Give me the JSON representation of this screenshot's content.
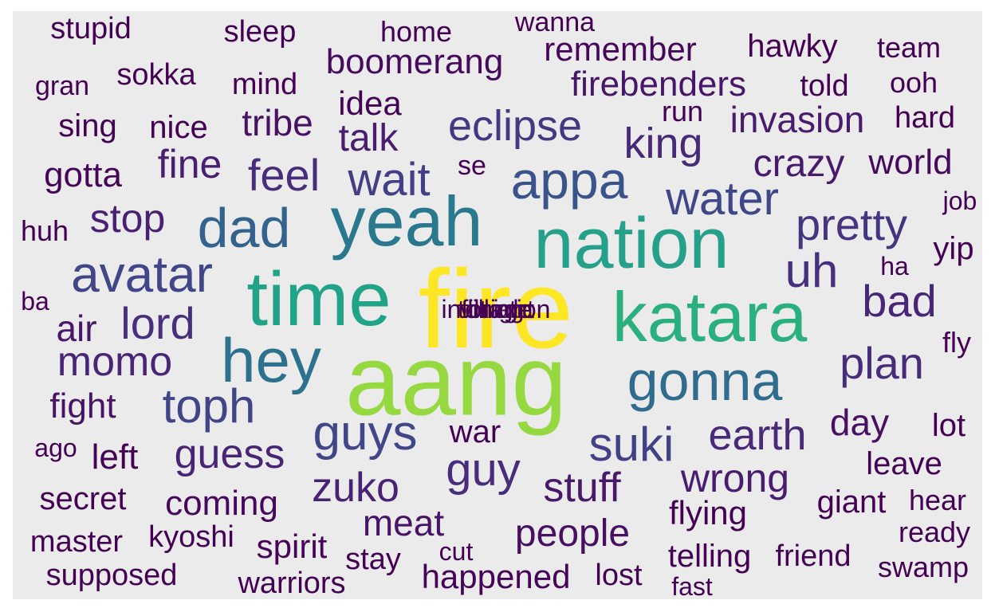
{
  "word_cloud": {
    "words": [
      {
        "text": "fire",
        "color": "#fde725"
      },
      {
        "text": "aang",
        "color": "#95d840"
      },
      {
        "text": "katara",
        "color": "#2ab07f"
      },
      {
        "text": "nation",
        "color": "#25a08a"
      },
      {
        "text": "time",
        "color": "#20a387"
      },
      {
        "text": "yeah",
        "color": "#2a788e"
      },
      {
        "text": "hey",
        "color": "#2c728e"
      },
      {
        "text": "gonna",
        "color": "#2f6c8e"
      },
      {
        "text": "dad",
        "color": "#33638d"
      },
      {
        "text": "appa",
        "color": "#3a538b"
      },
      {
        "text": "avatar",
        "color": "#404688"
      },
      {
        "text": "guys",
        "color": "#404688"
      },
      {
        "text": "water",
        "color": "#3f4788"
      },
      {
        "text": "toph",
        "color": "#414487"
      },
      {
        "text": "suki",
        "color": "#424186"
      },
      {
        "text": "wait",
        "color": "#433e85"
      },
      {
        "text": "eclipse",
        "color": "#453781"
      },
      {
        "text": "pretty",
        "color": "#463480"
      },
      {
        "text": "uh",
        "color": "#46307e"
      },
      {
        "text": "lord",
        "color": "#472f7d"
      },
      {
        "text": "feel",
        "color": "#472d7b"
      },
      {
        "text": "guy",
        "color": "#472d7b"
      },
      {
        "text": "plan",
        "color": "#472c7a"
      },
      {
        "text": "earth",
        "color": "#482a79"
      },
      {
        "text": "king",
        "color": "#482878"
      },
      {
        "text": "bad",
        "color": "#482677"
      },
      {
        "text": "momo",
        "color": "#482576"
      },
      {
        "text": "guess",
        "color": "#482475"
      },
      {
        "text": "zuko",
        "color": "#482374"
      },
      {
        "text": "stop",
        "color": "#482173"
      },
      {
        "text": "fine",
        "color": "#481f70"
      },
      {
        "text": "wrong",
        "color": "#481d6f"
      },
      {
        "text": "talk",
        "color": "#481c6e"
      },
      {
        "text": "invasion",
        "color": "#481b6d"
      },
      {
        "text": "crazy",
        "color": "#481a6c"
      },
      {
        "text": "stuff",
        "color": "#48186a"
      },
      {
        "text": "air",
        "color": "#481769"
      },
      {
        "text": "firebenders",
        "color": "#481668"
      },
      {
        "text": "meat",
        "color": "#481467"
      },
      {
        "text": "fight",
        "color": "#471365"
      },
      {
        "text": "tribe",
        "color": "#471164"
      },
      {
        "text": "day",
        "color": "#471063"
      },
      {
        "text": "people",
        "color": "#470e61"
      },
      {
        "text": "boomerang",
        "color": "#460b5e"
      },
      {
        "text": "world",
        "color": "#460a5d"
      },
      {
        "text": "coming",
        "color": "#46085c"
      },
      {
        "text": "remember",
        "color": "#46075a"
      },
      {
        "text": "gotta",
        "color": "#450559"
      },
      {
        "text": "spirit",
        "color": "#450457"
      },
      {
        "text": "happened",
        "color": "#450457"
      },
      {
        "text": "leave",
        "color": "#440256"
      },
      {
        "text": "idea",
        "color": "#440256"
      },
      {
        "text": "war",
        "color": "#440154"
      },
      {
        "text": "nice",
        "color": "#440154"
      },
      {
        "text": "sing",
        "color": "#440154"
      },
      {
        "text": "flying",
        "color": "#440154"
      },
      {
        "text": "left",
        "color": "#440154"
      },
      {
        "text": "giant",
        "color": "#440154"
      },
      {
        "text": "lot",
        "color": "#440154"
      },
      {
        "text": "yip",
        "color": "#440154"
      },
      {
        "text": "secret",
        "color": "#440154"
      },
      {
        "text": "telling",
        "color": "#440154"
      },
      {
        "text": "hawky",
        "color": "#440154"
      },
      {
        "text": "supposed",
        "color": "#440154"
      },
      {
        "text": "mind",
        "color": "#440154"
      },
      {
        "text": "hard",
        "color": "#440154"
      },
      {
        "text": "told",
        "color": "#440154"
      },
      {
        "text": "stay",
        "color": "#440154"
      },
      {
        "text": "friend",
        "color": "#440154"
      },
      {
        "text": "warriors",
        "color": "#440154"
      },
      {
        "text": "kyoshi",
        "color": "#440154"
      },
      {
        "text": "lost",
        "color": "#440154"
      },
      {
        "text": "ready",
        "color": "#440154"
      },
      {
        "text": "master",
        "color": "#440154"
      },
      {
        "text": "hear",
        "color": "#440154"
      },
      {
        "text": "sokka",
        "color": "#440154"
      },
      {
        "text": "swamp",
        "color": "#440154"
      },
      {
        "text": "stupid",
        "color": "#440154"
      },
      {
        "text": "home",
        "color": "#440154"
      },
      {
        "text": "sleep",
        "color": "#440154"
      },
      {
        "text": "team",
        "color": "#440154"
      },
      {
        "text": "ooh",
        "color": "#440154"
      },
      {
        "text": "run",
        "color": "#440154"
      },
      {
        "text": "se",
        "color": "#440154"
      },
      {
        "text": "wanna",
        "color": "#440154"
      },
      {
        "text": "gran",
        "color": "#440154"
      },
      {
        "text": "huh",
        "color": "#440154"
      },
      {
        "text": "job",
        "color": "#440154"
      },
      {
        "text": "fly",
        "color": "#440154"
      },
      {
        "text": "ha",
        "color": "#440154"
      },
      {
        "text": "ba",
        "color": "#440154"
      },
      {
        "text": "ago",
        "color": "#440154"
      },
      {
        "text": "cut",
        "color": "#440154"
      },
      {
        "text": "fast",
        "color": "#440154"
      },
      {
        "text": "infiltration",
        "color": "#440154"
      },
      {
        "text": "village",
        "color": "#440154"
      },
      {
        "text": "bring",
        "color": "#440154"
      },
      {
        "text": "tonight",
        "color": "#440154"
      }
    ]
  }
}
